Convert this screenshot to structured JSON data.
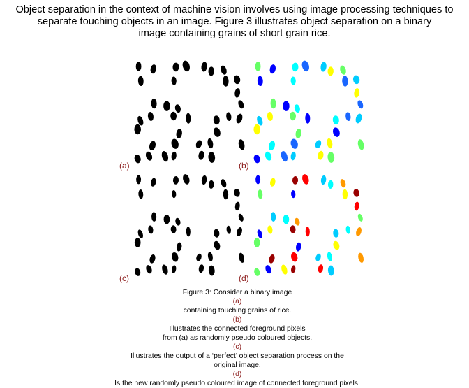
{
  "intro": {
    "line1": "Object separation in the context of machine vision involves using image processing techniques to",
    "line2": "separate touching objects in an image. Figure 3 illustrates object separation on a binary",
    "line3": "image containing grains of short grain rice."
  },
  "panels": {
    "a_label": "(a)",
    "b_label": "(b)",
    "c_label": "(c)",
    "d_label": "(d)"
  },
  "caption": {
    "l1_pre": "Figure 3: Consider a binary image ",
    "l1_ref_a": "(a)",
    "l1_mid": " containing touching grains of rice. ",
    "l1_ref_b": "(b)",
    "l1_post": " Illustrates the connected foreground pixels",
    "l2_pre": "from (a) as randomly pseudo coloured objects. ",
    "l2_ref_c": "(c)",
    "l2_post": " Illustrates the output of a ‘perfect’ object separation process on the",
    "l3_pre": "original image. ",
    "l3_ref_d": "(d)",
    "l3_post": " Is the new randomly pseudo coloured image of connected foreground pixels."
  },
  "colors": {
    "grain_binary": "#000000",
    "label_red": "#8b1a1a",
    "palette_b": [
      "#00ffff",
      "#0000ff",
      "#66ff66",
      "#ffff00",
      "#00ccff",
      "#1a66ff"
    ],
    "palette_d": [
      "#00ffff",
      "#0000ff",
      "#ff0000",
      "#ff9900",
      "#ffff00",
      "#00ccff",
      "#66ff66",
      "#990000"
    ]
  }
}
